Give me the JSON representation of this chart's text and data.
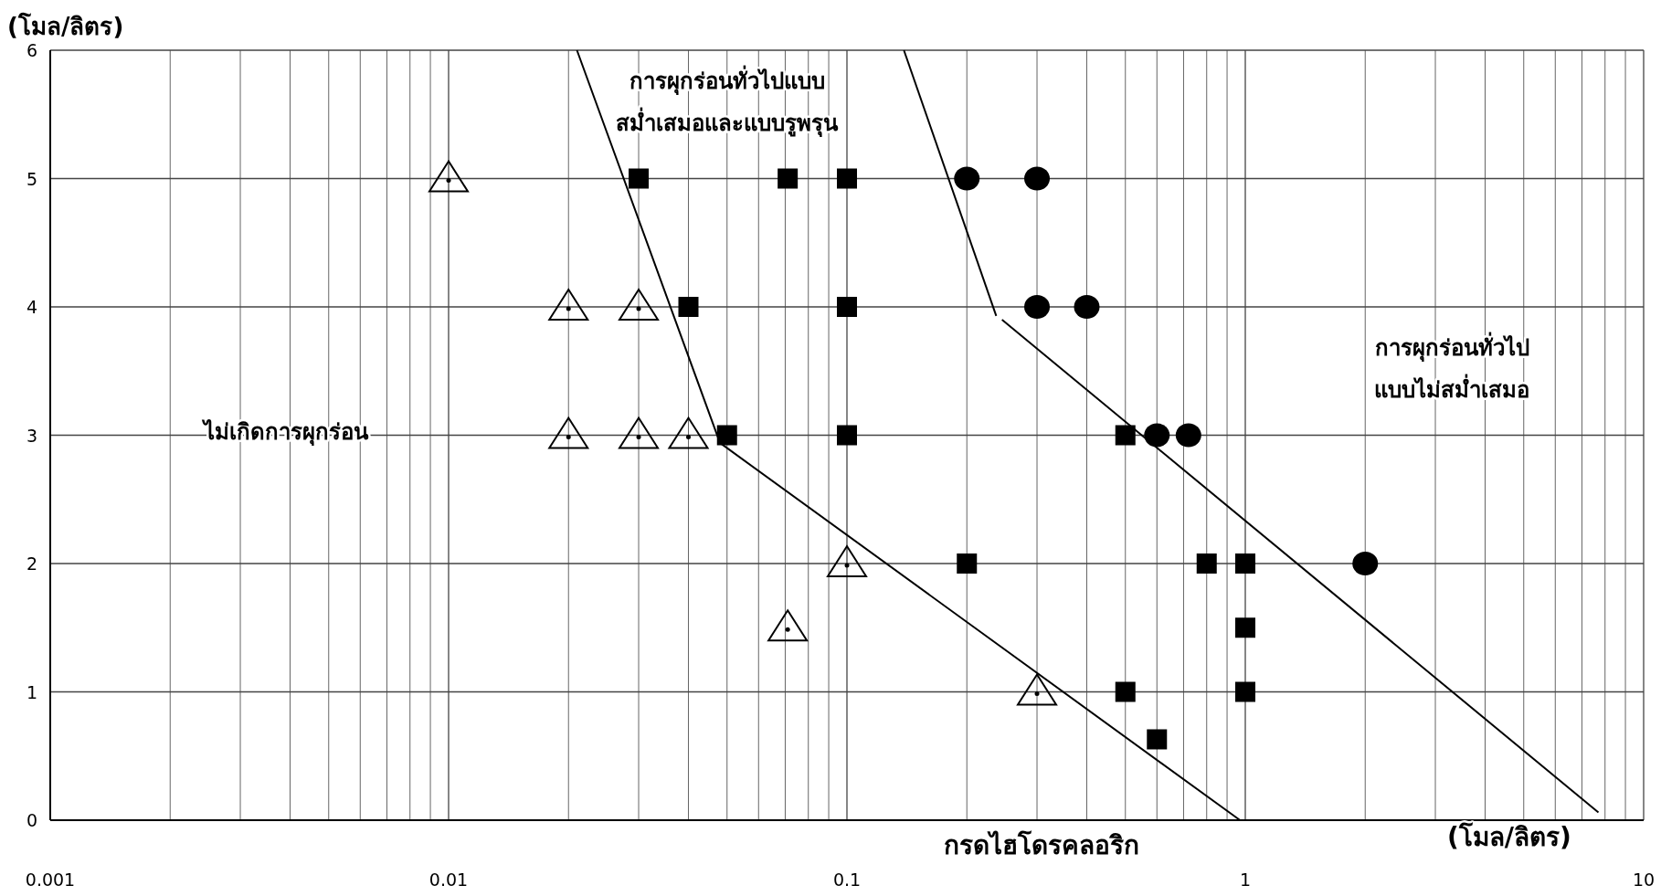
{
  "chart_data": {
    "type": "scatter",
    "ylabel": "(โมล/ลิตร)",
    "xlabel": "กรดไฮโดรคลอริก",
    "log": "x",
    "grid": true,
    "xlim": [
      0.001,
      10
    ],
    "ylim": [
      0,
      6
    ],
    "xticks": [
      0.001,
      0.01,
      0.1,
      1,
      10
    ],
    "yticks": [
      0,
      1,
      2,
      3,
      4,
      5,
      6
    ],
    "annotations": [
      "ไม่เกิดการผุกร่อน",
      "การผุกร่อนทั่วไปแบบ\nสม่ำเสมอและแบบรูพรุน",
      "การผุกร่อนทั่วไป\nแบบไม่สม่ำเสมอ",
      "(โมล/ลิตร)"
    ],
    "series": [
      {
        "marker": "triangle",
        "color": "#000000",
        "x": [
          0.01,
          0.02,
          0.03,
          0.02,
          0.03,
          0.04,
          0.1,
          0.071,
          0.3
        ],
        "values": [
          5,
          4,
          4,
          3,
          3,
          3,
          2,
          1.5,
          1
        ]
      },
      {
        "marker": "square",
        "color": "#000000",
        "x": [
          0.03,
          0.071,
          0.1,
          0.04,
          0.1,
          0.05,
          0.1,
          0.5,
          0.2,
          0.8,
          1,
          1,
          0.5,
          1,
          0.6
        ],
        "values": [
          5,
          5,
          5,
          4,
          4,
          3,
          3,
          3,
          2,
          2,
          2,
          1.5,
          1,
          1,
          0.63
        ]
      },
      {
        "marker": "circle",
        "color": "#000000",
        "x": [
          0.2,
          0.3,
          0.3,
          0.4,
          0.6,
          0.72,
          2
        ],
        "values": [
          5,
          5,
          4,
          4,
          3,
          3,
          2
        ]
      },
      {
        "type": "line",
        "marker": "none",
        "color": "#000000",
        "x": [
          0.021,
          0.048,
          0.97
        ],
        "values": [
          6,
          2.94,
          0
        ]
      },
      {
        "type": "line",
        "marker": "none",
        "color": "#000000",
        "x": [
          0.139,
          0.237
        ],
        "values": [
          6,
          3.93
        ]
      },
      {
        "type": "line",
        "marker": "none",
        "color": "#000000",
        "x": [
          0.245,
          7.7
        ],
        "values": [
          3.9,
          0.06
        ]
      }
    ]
  }
}
